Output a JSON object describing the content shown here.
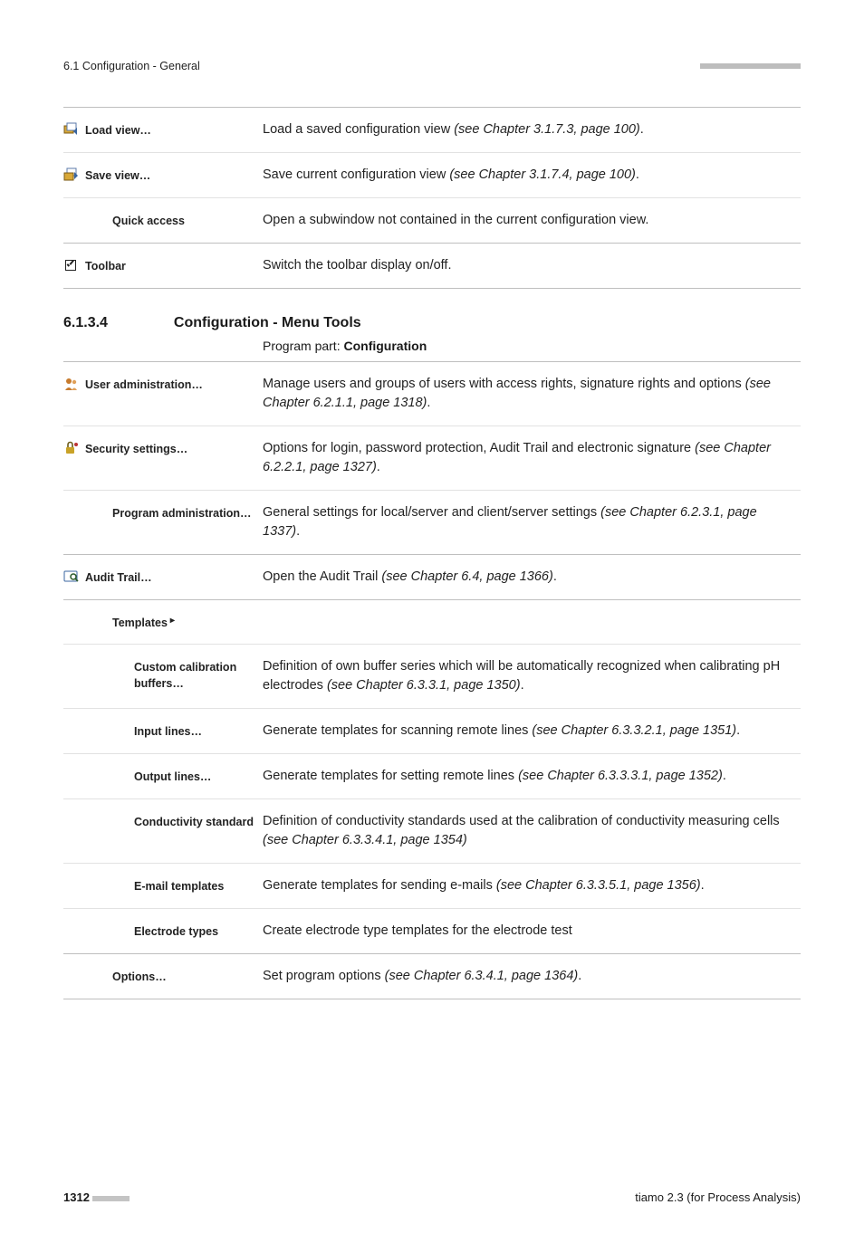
{
  "header": {
    "left": "6.1 Configuration - General",
    "rightPatternCount": 22
  },
  "topBlock": {
    "rows": [
      {
        "icon": "load-view-icon",
        "label": "Load view…",
        "desc": "Load a saved configuration view ",
        "descItalic": "(see Chapter 3.1.7.3, page 100)",
        "descAfter": "."
      },
      {
        "icon": "save-view-icon",
        "label": "Save view…",
        "desc": "Save current configuration view ",
        "descItalic": "(see Chapter 3.1.7.4, page 100)",
        "descAfter": "."
      },
      {
        "icon": null,
        "indent": 1,
        "label": "Quick access",
        "desc": "Open a subwindow not contained in the current configuration view.",
        "descItalic": "",
        "descAfter": ""
      },
      {
        "icon": "checkbox-icon",
        "indent": 0,
        "label": "Toolbar",
        "desc": "Switch the toolbar display on/off.",
        "descItalic": "",
        "descAfter": ""
      }
    ]
  },
  "section": {
    "number": "6.1.3.4",
    "title": "Configuration - Menu Tools",
    "programPartPrefix": "Program part: ",
    "programPartBold": "Configuration"
  },
  "toolsBlock": {
    "rows": [
      {
        "icon": "user-admin-icon",
        "label": "User administration…",
        "desc": "Manage users and groups of users with access rights, signature rights and options ",
        "descItalic": "(see Chapter 6.2.1.1, page 1318)",
        "descAfter": "."
      },
      {
        "icon": "security-icon",
        "label": "Security settings…",
        "desc": "Options for login, password protection, Audit Trail and electronic signature ",
        "descItalic": "(see Chapter 6.2.2.1, page 1327)",
        "descAfter": "."
      },
      {
        "icon": null,
        "indent": 1,
        "label": "Program administration…",
        "desc": "General settings for local/server and client/server settings ",
        "descItalic": "(see Chapter 6.2.3.1, page 1337)",
        "descAfter": "."
      },
      {
        "icon": "audit-trail-icon",
        "label": "Audit Trail…",
        "desc": "Open the Audit Trail ",
        "descItalic": "(see Chapter 6.4, page 1366)",
        "descAfter": "."
      },
      {
        "icon": null,
        "indent": 1,
        "label": "Templates",
        "tri": "▸",
        "desc": "",
        "descItalic": "",
        "descAfter": ""
      },
      {
        "icon": null,
        "indent": 2,
        "label": "Custom calibration buffers…",
        "desc": "Definition of own buffer series which will be automatically recognized when calibrating pH electrodes ",
        "descItalic": "(see Chapter 6.3.3.1, page 1350)",
        "descAfter": "."
      },
      {
        "icon": null,
        "indent": 2,
        "label": "Input lines…",
        "desc": "Generate templates for scanning remote lines ",
        "descItalic": "(see Chapter 6.3.3.2.1, page 1351)",
        "descAfter": "."
      },
      {
        "icon": null,
        "indent": 2,
        "label": "Output lines…",
        "desc": "Generate templates for setting remote lines ",
        "descItalic": "(see Chapter 6.3.3.3.1, page 1352)",
        "descAfter": "."
      },
      {
        "icon": null,
        "indent": 2,
        "label": "Conductivity standard",
        "desc": "Definition of conductivity standards used at the calibration of conductivity measuring cells ",
        "descItalic": "(see Chapter 6.3.3.4.1, page 1354)",
        "descAfter": ""
      },
      {
        "icon": null,
        "indent": 2,
        "label": "E-mail templates",
        "desc": "Generate templates for sending e-mails ",
        "descItalic": "(see Chapter 6.3.3.5.1, page 1356)",
        "descAfter": "."
      },
      {
        "icon": null,
        "indent": 2,
        "label": "Electrode types",
        "desc": "Create electrode type templates for the electrode test",
        "descItalic": "",
        "descAfter": ""
      },
      {
        "icon": null,
        "indent": 1,
        "label": "Options…",
        "desc": "Set program options ",
        "descItalic": "(see Chapter 6.3.4.1, page 1364)",
        "descAfter": "."
      }
    ]
  },
  "footer": {
    "pageNumber": "1312",
    "sqCount": 8,
    "right": "tiamo 2.3 (for Process Analysis)"
  }
}
